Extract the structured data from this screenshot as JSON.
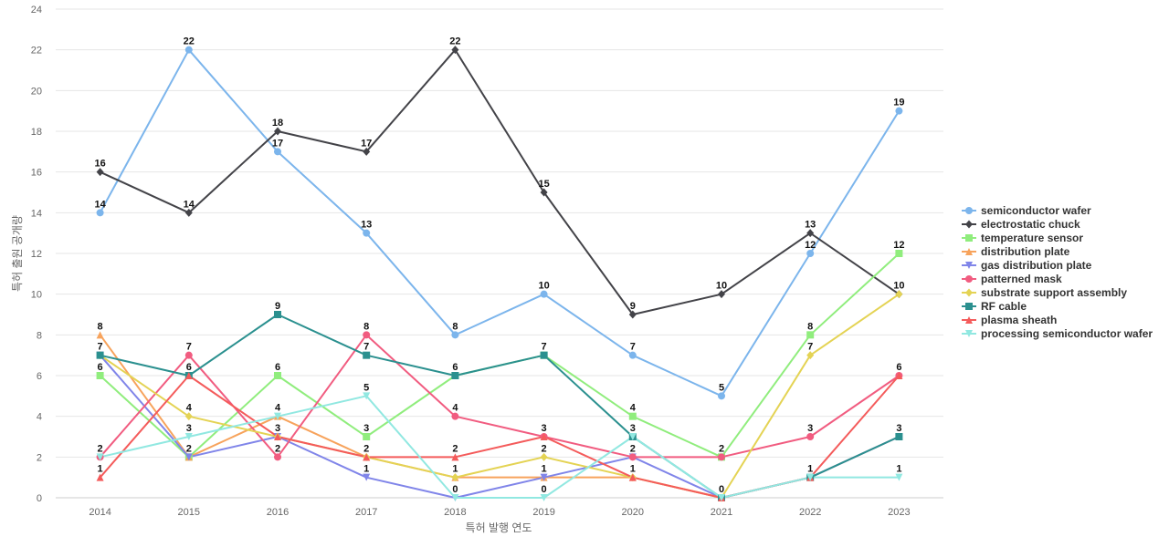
{
  "chart_data": {
    "type": "line",
    "title": "",
    "xlabel": "특허 발행 연도",
    "ylabel": "특허 출원 공개량",
    "x": [
      "2014",
      "2015",
      "2016",
      "2017",
      "2018",
      "2019",
      "2020",
      "2021",
      "2022",
      "2023"
    ],
    "ylim": [
      0,
      24
    ],
    "yticks": [
      0,
      2,
      4,
      6,
      8,
      10,
      12,
      14,
      16,
      18,
      20,
      22,
      24
    ],
    "grid": true,
    "legend_position": "right",
    "series": [
      {
        "name": "semiconductor wafer",
        "color": "#7cb5ec",
        "marker": "circle",
        "values": [
          14,
          22,
          17,
          13,
          8,
          10,
          7,
          5,
          12,
          19
        ]
      },
      {
        "name": "electrostatic chuck",
        "color": "#434348",
        "marker": "diamond",
        "values": [
          16,
          14,
          18,
          17,
          22,
          15,
          9,
          10,
          13,
          10
        ]
      },
      {
        "name": "temperature sensor",
        "color": "#90ed7d",
        "marker": "square",
        "values": [
          6,
          2,
          6,
          3,
          6,
          7,
          4,
          2,
          8,
          12
        ]
      },
      {
        "name": "distribution plate",
        "color": "#f7a35c",
        "marker": "triangle",
        "values": [
          8,
          2,
          4,
          2,
          1,
          1,
          1,
          0,
          1,
          3
        ]
      },
      {
        "name": "gas distribution plate",
        "color": "#8085e9",
        "marker": "triangle-down",
        "values": [
          7,
          2,
          3,
          1,
          0,
          1,
          2,
          0,
          1,
          3
        ]
      },
      {
        "name": "patterned mask",
        "color": "#f15c80",
        "marker": "circle",
        "values": [
          2,
          7,
          2,
          8,
          4,
          3,
          2,
          2,
          3,
          6
        ]
      },
      {
        "name": "substrate support assembly",
        "color": "#e4d354",
        "marker": "diamond",
        "values": [
          7,
          4,
          3,
          2,
          1,
          2,
          1,
          0,
          7,
          10
        ]
      },
      {
        "name": "RF cable",
        "color": "#2b908f",
        "marker": "square",
        "values": [
          7,
          6,
          9,
          7,
          6,
          7,
          3,
          0,
          1,
          3
        ]
      },
      {
        "name": "plasma sheath",
        "color": "#f45b5b",
        "marker": "triangle",
        "values": [
          1,
          6,
          3,
          2,
          2,
          3,
          1,
          0,
          1,
          6
        ]
      },
      {
        "name": "processing semiconductor wafer",
        "color": "#91e8e1",
        "marker": "triangle-down",
        "values": [
          2,
          3,
          4,
          5,
          0,
          0,
          3,
          0,
          1,
          1
        ]
      }
    ],
    "data_labels": [
      {
        "x": "2014",
        "text": "16"
      },
      {
        "x": "2014",
        "text": "14"
      },
      {
        "x": "2014",
        "text": "8"
      },
      {
        "x": "2014",
        "text": "7"
      },
      {
        "x": "2014",
        "text": "6"
      },
      {
        "x": "2014",
        "text": "2"
      },
      {
        "x": "2014",
        "text": "1"
      },
      {
        "x": "2015",
        "text": "22"
      },
      {
        "x": "2015",
        "text": "14"
      },
      {
        "x": "2015",
        "text": "7"
      },
      {
        "x": "2015",
        "text": "6"
      },
      {
        "x": "2015",
        "text": "4"
      },
      {
        "x": "2015",
        "text": "3"
      },
      {
        "x": "2015",
        "text": "2"
      },
      {
        "x": "2016",
        "text": "18"
      },
      {
        "x": "2016",
        "text": "17"
      },
      {
        "x": "2016",
        "text": "9"
      },
      {
        "x": "2016",
        "text": "6"
      },
      {
        "x": "2016",
        "text": "4"
      },
      {
        "x": "2016",
        "text": "3"
      },
      {
        "x": "2016",
        "text": "2"
      },
      {
        "x": "2017",
        "text": "17"
      },
      {
        "x": "2017",
        "text": "13"
      },
      {
        "x": "2017",
        "text": "8"
      },
      {
        "x": "2017",
        "text": "7"
      },
      {
        "x": "2017",
        "text": "5"
      },
      {
        "x": "2017",
        "text": "3"
      },
      {
        "x": "2017",
        "text": "2"
      },
      {
        "x": "2017",
        "text": "1"
      },
      {
        "x": "2018",
        "text": "22"
      },
      {
        "x": "2018",
        "text": "8"
      },
      {
        "x": "2018",
        "text": "6"
      },
      {
        "x": "2018",
        "text": "4"
      },
      {
        "x": "2018",
        "text": "2"
      },
      {
        "x": "2018",
        "text": "1"
      },
      {
        "x": "2018",
        "text": "0"
      },
      {
        "x": "2019",
        "text": "15"
      },
      {
        "x": "2019",
        "text": "10"
      },
      {
        "x": "2019",
        "text": "7"
      },
      {
        "x": "2019",
        "text": "3"
      },
      {
        "x": "2019",
        "text": "2"
      },
      {
        "x": "2019",
        "text": "1"
      },
      {
        "x": "2019",
        "text": "0"
      },
      {
        "x": "2020",
        "text": "9"
      },
      {
        "x": "2020",
        "text": "7"
      },
      {
        "x": "2020",
        "text": "4"
      },
      {
        "x": "2020",
        "text": "3"
      },
      {
        "x": "2020",
        "text": "2"
      },
      {
        "x": "2020",
        "text": "1"
      },
      {
        "x": "2021",
        "text": "10"
      },
      {
        "x": "2021",
        "text": "5"
      },
      {
        "x": "2021",
        "text": "2"
      },
      {
        "x": "2021",
        "text": "0"
      },
      {
        "x": "2022",
        "text": "13"
      },
      {
        "x": "2022",
        "text": "12"
      },
      {
        "x": "2022",
        "text": "8"
      },
      {
        "x": "2022",
        "text": "7"
      },
      {
        "x": "2022",
        "text": "3"
      },
      {
        "x": "2022",
        "text": "1"
      },
      {
        "x": "2023",
        "text": "19"
      },
      {
        "x": "2023",
        "text": "12"
      },
      {
        "x": "2023",
        "text": "10"
      },
      {
        "x": "2023",
        "text": "6"
      },
      {
        "x": "2023",
        "text": "3"
      },
      {
        "x": "2023",
        "text": "1"
      }
    ]
  }
}
